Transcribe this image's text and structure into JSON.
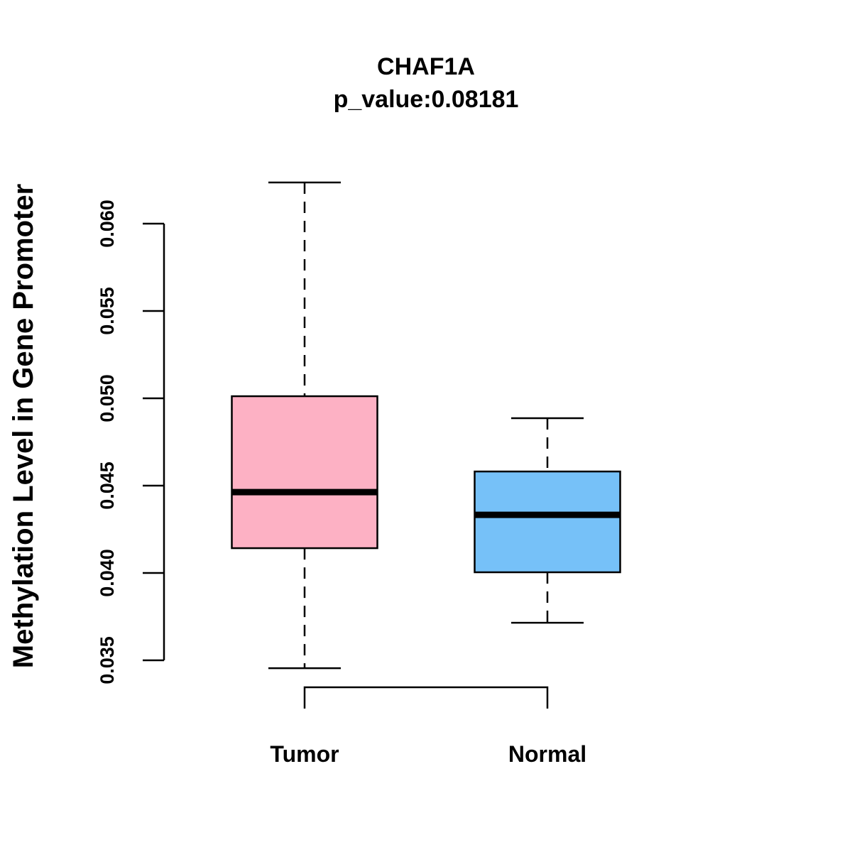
{
  "chart_data": {
    "type": "box",
    "title": "CHAF1A",
    "subtitle": "p_value:0.08181",
    "xlabel": "",
    "ylabel": "Methylation Level in Gene Promoter",
    "yticks": [
      "0.035",
      "0.040",
      "0.045",
      "0.050",
      "0.055",
      "0.060"
    ],
    "ytick_values": [
      0.035,
      0.04,
      0.045,
      0.05,
      0.055,
      0.06
    ],
    "grid": false,
    "categories": [
      "Tumor",
      "Normal"
    ],
    "series": [
      {
        "name": "Tumor",
        "color": "#FDB1C4",
        "whisker_low": 0.03455,
        "q1": 0.04142,
        "median": 0.04463,
        "q3": 0.05012,
        "whisker_high": 0.06236
      },
      {
        "name": "Normal",
        "color": "#76C1F8",
        "whisker_low": 0.03715,
        "q1": 0.04004,
        "median": 0.04333,
        "q3": 0.04581,
        "whisker_high": 0.04886
      }
    ],
    "comparison_bracket": [
      "Tumor",
      "Normal"
    ]
  }
}
